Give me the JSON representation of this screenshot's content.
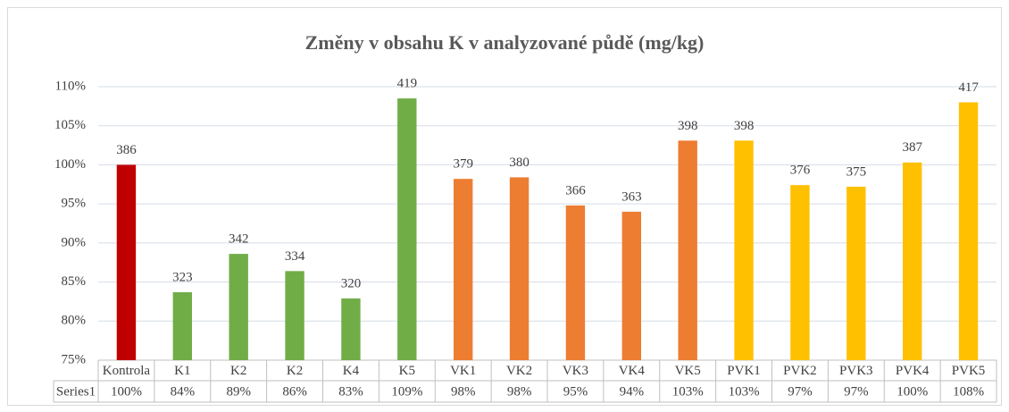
{
  "chart_data": {
    "type": "bar",
    "title": "Změny v obsahu K v analyzované půdě (mg/kg)",
    "categories": [
      "Kontrola",
      "K1",
      "K2",
      "K2",
      "K4",
      "K5",
      "VK1",
      "VK2",
      "VK3",
      "VK4",
      "VK5",
      "PVK1",
      "PVK2",
      "PVK3",
      "PVK4",
      "PVK5"
    ],
    "series": [
      {
        "name": "Series1",
        "colors": [
          "#c00000",
          "#70ad47",
          "#70ad47",
          "#70ad47",
          "#70ad47",
          "#70ad47",
          "#ed7d31",
          "#ed7d31",
          "#ed7d31",
          "#ed7d31",
          "#ed7d31",
          "#ffc000",
          "#ffc000",
          "#ffc000",
          "#ffc000",
          "#ffc000"
        ],
        "values": [
          100,
          83.7,
          88.6,
          86.4,
          82.9,
          108.5,
          98.2,
          98.4,
          94.8,
          94.0,
          103.1,
          103.1,
          97.4,
          97.2,
          100.3,
          108.0
        ],
        "value_labels": [
          "100%",
          "84%",
          "89%",
          "86%",
          "83%",
          "109%",
          "98%",
          "98%",
          "95%",
          "94%",
          "103%",
          "103%",
          "97%",
          "97%",
          "100%",
          "108%"
        ],
        "data_labels": [
          386,
          323,
          342,
          334,
          320,
          419,
          379,
          380,
          366,
          363,
          398,
          398,
          376,
          375,
          387,
          417
        ]
      }
    ],
    "ylim": [
      75,
      110
    ],
    "yticks": [
      {
        "value": 75,
        "label": "75%"
      },
      {
        "value": 80,
        "label": "80%"
      },
      {
        "value": 85,
        "label": "85%"
      },
      {
        "value": 90,
        "label": "90%"
      },
      {
        "value": 95,
        "label": "95%"
      },
      {
        "value": 100,
        "label": "100%"
      },
      {
        "value": 105,
        "label": "105%"
      },
      {
        "value": 110,
        "label": "110%"
      }
    ],
    "grid": true
  }
}
